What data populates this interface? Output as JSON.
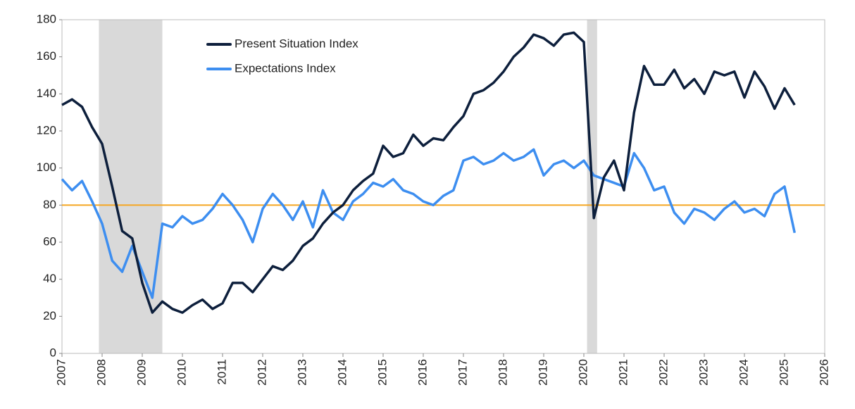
{
  "chart_data": {
    "type": "line",
    "x": [
      2007,
      2007.25,
      2007.5,
      2007.75,
      2008,
      2008.25,
      2008.5,
      2008.75,
      2009,
      2009.25,
      2009.5,
      2009.75,
      2010,
      2010.25,
      2010.5,
      2010.75,
      2011,
      2011.25,
      2011.5,
      2011.75,
      2012,
      2012.25,
      2012.5,
      2012.75,
      2013,
      2013.25,
      2013.5,
      2013.75,
      2014,
      2014.25,
      2014.5,
      2014.75,
      2015,
      2015.25,
      2015.5,
      2015.75,
      2016,
      2016.25,
      2016.5,
      2016.75,
      2017,
      2017.25,
      2017.5,
      2017.75,
      2018,
      2018.25,
      2018.5,
      2018.75,
      2019,
      2019.25,
      2019.5,
      2019.75,
      2020,
      2020.25,
      2020.5,
      2020.75,
      2021,
      2021.25,
      2021.5,
      2021.75,
      2022,
      2022.25,
      2022.5,
      2022.75,
      2023,
      2023.25,
      2023.5,
      2023.75,
      2024,
      2024.25,
      2024.5,
      2024.75,
      2025,
      2025.25
    ],
    "series": [
      {
        "name": "Present Situation Index",
        "color": "#0d1f3c",
        "values": [
          134,
          137,
          133,
          122,
          113,
          90,
          66,
          62,
          38,
          22,
          28,
          24,
          22,
          26,
          29,
          24,
          27,
          38,
          38,
          33,
          40,
          47,
          45,
          50,
          58,
          62,
          70,
          76,
          80,
          88,
          93,
          97,
          112,
          106,
          108,
          118,
          112,
          116,
          115,
          122,
          128,
          140,
          142,
          146,
          152,
          160,
          165,
          172,
          170,
          166,
          172,
          173,
          168,
          73,
          95,
          104,
          88,
          130,
          155,
          145,
          145,
          153,
          143,
          148,
          140,
          152,
          150,
          152,
          138,
          152,
          144,
          132,
          143,
          134
        ]
      },
      {
        "name": "Expectations Index",
        "color": "#3d8ef0",
        "values": [
          94,
          88,
          93,
          82,
          70,
          50,
          44,
          58,
          44,
          30,
          70,
          68,
          74,
          70,
          72,
          78,
          86,
          80,
          72,
          60,
          78,
          86,
          80,
          72,
          82,
          68,
          88,
          76,
          72,
          82,
          86,
          92,
          90,
          94,
          88,
          86,
          82,
          80,
          85,
          88,
          104,
          106,
          102,
          104,
          108,
          104,
          106,
          110,
          96,
          102,
          104,
          100,
          104,
          96,
          94,
          92,
          90,
          108,
          100,
          88,
          90,
          76,
          70,
          78,
          76,
          72,
          78,
          82,
          76,
          78,
          74,
          86,
          90,
          65
        ]
      }
    ],
    "xlim": [
      2007,
      2026
    ],
    "xticks": [
      2007,
      2008,
      2009,
      2010,
      2011,
      2012,
      2013,
      2014,
      2015,
      2016,
      2017,
      2018,
      2019,
      2020,
      2021,
      2022,
      2023,
      2024,
      2025,
      2026
    ],
    "ylim": [
      0,
      180
    ],
    "yticks": [
      0,
      20,
      40,
      60,
      80,
      100,
      120,
      140,
      160,
      180
    ],
    "hline": {
      "value": 80,
      "color": "#f5a623"
    },
    "shaded_regions": [
      [
        2007.92,
        2009.5
      ],
      [
        2020.08,
        2020.33
      ]
    ],
    "shade_color": "#d9d9d9",
    "legend": "upper left"
  }
}
